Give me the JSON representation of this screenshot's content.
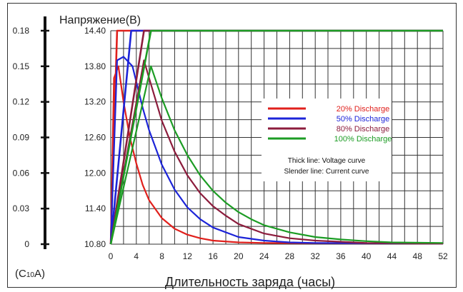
{
  "chart_data": {
    "type": "line",
    "title": "",
    "y_left": {
      "label": "Напряжение(B)",
      "ticks": [
        "10.80",
        "11.40",
        "12.00",
        "12.60",
        "13.20",
        "13.80",
        "14.40"
      ],
      "range": [
        10.8,
        14.4
      ]
    },
    "y_current": {
      "label": "(C10A)",
      "label_main": "(C",
      "label_sub": "10",
      "label_end": "A)",
      "ticks": [
        "0",
        "0.03",
        "0.06",
        "0.09",
        "0.12",
        "0.15",
        "0.18"
      ],
      "range": [
        0,
        0.18
      ]
    },
    "x_axis": {
      "label": "Длительность заряда (часы)",
      "ticks": [
        "0",
        "4",
        "8",
        "12",
        "16",
        "20",
        "24",
        "28",
        "32",
        "36",
        "40",
        "44",
        "48",
        "52"
      ],
      "range": [
        0,
        52
      ]
    },
    "grid": true,
    "legend_position": "right-center",
    "legend": [
      {
        "name": "20% Discharge",
        "color": "#e0201c"
      },
      {
        "name": "50% Discharge",
        "color": "#1c24d8"
      },
      {
        "name": "80% Discharge",
        "color": "#8c1c3c"
      },
      {
        "name": "100% Discharge",
        "color": "#1c9c24"
      }
    ],
    "legend_notes": [
      "Thick line:  Voltage curve",
      "Slender line: Current curve"
    ],
    "series": [
      {
        "name": "20% Discharge",
        "color": "#e0201c",
        "voltage": {
          "x": [
            0,
            1,
            52
          ],
          "y": [
            10.8,
            14.4,
            14.4
          ]
        },
        "current": {
          "x": [
            0,
            0.5,
            1.2,
            2,
            3,
            4,
            5,
            6,
            8,
            10,
            12,
            14,
            16,
            20,
            24,
            52
          ],
          "y": [
            0,
            0.14,
            0.15,
            0.12,
            0.09,
            0.068,
            0.05,
            0.037,
            0.022,
            0.013,
            0.008,
            0.005,
            0.003,
            0.0015,
            0.001,
            0.0005
          ]
        }
      },
      {
        "name": "50% Discharge",
        "color": "#1c24d8",
        "voltage": {
          "x": [
            0,
            3.2,
            52
          ],
          "y": [
            10.8,
            14.4,
            14.4
          ]
        },
        "current": {
          "x": [
            0,
            1,
            2,
            3.4,
            5,
            6,
            8,
            10,
            12,
            14,
            16,
            20,
            24,
            28,
            32,
            52
          ],
          "y": [
            0,
            0.155,
            0.158,
            0.15,
            0.115,
            0.096,
            0.067,
            0.046,
            0.031,
            0.021,
            0.014,
            0.006,
            0.003,
            0.0015,
            0.001,
            0.0005
          ]
        }
      },
      {
        "name": "80% Discharge",
        "color": "#8c1c3c",
        "voltage": {
          "x": [
            0,
            5.2,
            52
          ],
          "y": [
            10.8,
            14.4,
            14.4
          ]
        },
        "current": {
          "x": [
            0,
            5.2,
            6,
            8,
            10,
            12,
            14,
            16,
            18,
            20,
            24,
            28,
            32,
            40,
            52
          ],
          "y": [
            0,
            0.155,
            0.14,
            0.104,
            0.078,
            0.058,
            0.043,
            0.032,
            0.024,
            0.017,
            0.009,
            0.005,
            0.003,
            0.001,
            0.0005
          ]
        }
      },
      {
        "name": "100% Discharge",
        "color": "#1c9c24",
        "voltage": {
          "x": [
            0,
            6.3,
            52
          ],
          "y": [
            10.8,
            14.4,
            14.4
          ]
        },
        "current": {
          "x": [
            0,
            6.3,
            8,
            10,
            12,
            14,
            16,
            18,
            20,
            22,
            24,
            28,
            32,
            36,
            40,
            44,
            52
          ],
          "y": [
            0,
            0.15,
            0.123,
            0.096,
            0.075,
            0.058,
            0.045,
            0.035,
            0.027,
            0.021,
            0.016,
            0.01,
            0.006,
            0.004,
            0.0025,
            0.0015,
            0.001
          ]
        }
      }
    ]
  }
}
